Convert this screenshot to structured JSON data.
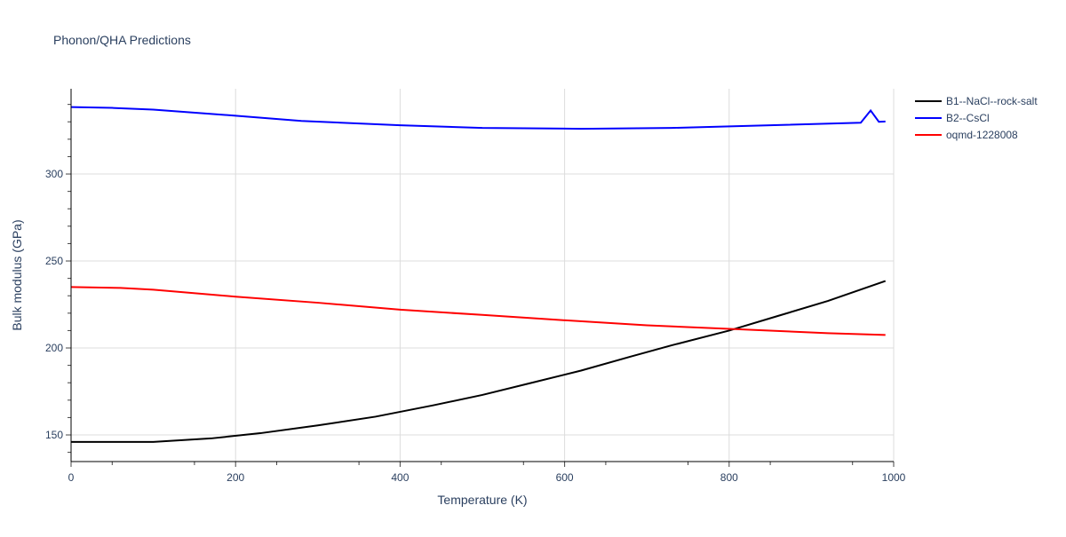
{
  "chart_data": {
    "type": "line",
    "title": "Phonon/QHA Predictions",
    "xlabel": "Temperature (K)",
    "ylabel": "Bulk modulus (GPa)",
    "xlim": [
      0,
      1000
    ],
    "ylim": [
      134.7,
      349
    ],
    "xticks": [
      0,
      200,
      400,
      600,
      800,
      1000
    ],
    "yticks": [
      150,
      200,
      250,
      300
    ],
    "grid": true,
    "legend": "top-right",
    "series": [
      {
        "name": "B1--NaCl--rock-salt",
        "color": "#000000",
        "x": [
          0,
          100,
          170,
          230,
          300,
          370,
          440,
          500,
          560,
          620,
          680,
          730,
          800,
          860,
          920,
          990
        ],
        "y": [
          146,
          146,
          148,
          151,
          155.5,
          160.5,
          167,
          173,
          180,
          187,
          195,
          201.5,
          210,
          218.5,
          227,
          238.5
        ]
      },
      {
        "name": "B2--CsCl",
        "color": "#0000ff",
        "x": [
          0,
          50,
          100,
          200,
          280,
          400,
          500,
          620,
          730,
          850,
          960,
          972,
          982,
          990
        ],
        "y": [
          338.5,
          338,
          337,
          333.5,
          330.5,
          328,
          326.5,
          326,
          326.5,
          328,
          329.5,
          336.5,
          330,
          330.2
        ]
      },
      {
        "name": "oqmd-1228008",
        "color": "#ff0000",
        "x": [
          0,
          60,
          100,
          200,
          300,
          400,
          500,
          580,
          700,
          800,
          920,
          990
        ],
        "y": [
          235,
          234.5,
          233.5,
          229.5,
          226,
          222,
          219,
          216.5,
          213,
          211,
          208.5,
          207.5
        ]
      }
    ]
  }
}
